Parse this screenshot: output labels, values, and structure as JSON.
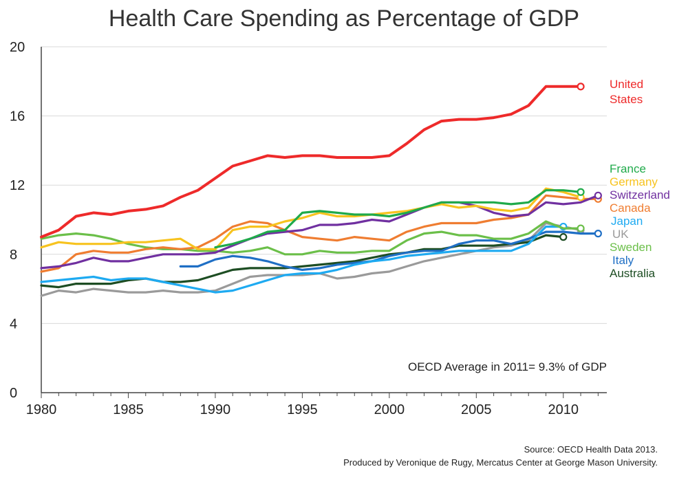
{
  "chart_data": {
    "type": "line",
    "title": "Health Care Spending as Percentage of GDP",
    "xlabel": "",
    "ylabel": "",
    "xlim": [
      1980,
      2012.5
    ],
    "ylim": [
      0,
      20
    ],
    "x_ticks": [
      "1980",
      "1985",
      "1990",
      "1995",
      "2000",
      "2005",
      "2010"
    ],
    "y_ticks": [
      "0",
      "4",
      "8",
      "12",
      "16",
      "20"
    ],
    "grid": "horizontal",
    "annotation": "OECD Average in 2011= 9.3% of GDP",
    "series": [
      {
        "name": "United States",
        "label_lines": [
          "United",
          "States"
        ],
        "color": "#ee2a2a",
        "x": [
          1980,
          1981,
          1982,
          1983,
          1984,
          1985,
          1986,
          1987,
          1988,
          1989,
          1990,
          1991,
          1992,
          1993,
          1994,
          1995,
          1996,
          1997,
          1998,
          1999,
          2000,
          2001,
          2002,
          2003,
          2004,
          2005,
          2006,
          2007,
          2008,
          2009,
          2010,
          2011
        ],
        "values": [
          9.0,
          9.4,
          10.2,
          10.4,
          10.3,
          10.5,
          10.6,
          10.8,
          11.3,
          11.7,
          12.4,
          13.1,
          13.4,
          13.7,
          13.6,
          13.7,
          13.7,
          13.6,
          13.6,
          13.6,
          13.7,
          14.4,
          15.2,
          15.7,
          15.8,
          15.8,
          15.9,
          16.1,
          16.6,
          17.7,
          17.7,
          17.7
        ]
      },
      {
        "name": "France",
        "label_lines": [
          "France"
        ],
        "color": "#1faa4a",
        "x": [
          1990,
          1991,
          1992,
          1993,
          1994,
          1995,
          1996,
          1997,
          1998,
          1999,
          2000,
          2001,
          2002,
          2003,
          2004,
          2005,
          2006,
          2007,
          2008,
          2009,
          2010,
          2011
        ],
        "values": [
          8.4,
          8.6,
          8.9,
          9.3,
          9.4,
          10.4,
          10.5,
          10.4,
          10.3,
          10.3,
          10.2,
          10.4,
          10.7,
          11.0,
          11.0,
          11.0,
          11.0,
          10.9,
          11.0,
          11.7,
          11.7,
          11.6
        ]
      },
      {
        "name": "Germany",
        "label_lines": [
          "Germany"
        ],
        "color": "#f7c31f",
        "x": [
          1980,
          1981,
          1982,
          1983,
          1984,
          1985,
          1986,
          1987,
          1988,
          1989,
          1990,
          1991,
          1992,
          1993,
          1994,
          1995,
          1996,
          1997,
          1998,
          1999,
          2000,
          2001,
          2002,
          2003,
          2004,
          2005,
          2006,
          2007,
          2008,
          2009,
          2010,
          2011
        ],
        "values": [
          8.4,
          8.7,
          8.6,
          8.6,
          8.6,
          8.7,
          8.7,
          8.8,
          8.9,
          8.3,
          8.3,
          9.4,
          9.6,
          9.6,
          9.9,
          10.1,
          10.4,
          10.2,
          10.2,
          10.3,
          10.4,
          10.5,
          10.7,
          10.9,
          10.7,
          10.8,
          10.6,
          10.5,
          10.7,
          11.8,
          11.6,
          11.3
        ]
      },
      {
        "name": "Switzerland",
        "label_lines": [
          "Switzerland"
        ],
        "color": "#7030a0",
        "x": [
          1980,
          1981,
          1982,
          1983,
          1984,
          1985,
          1986,
          1987,
          1988,
          1989,
          1990,
          1991,
          1992,
          1993,
          1994,
          1995,
          1996,
          1997,
          1998,
          1999,
          2000,
          2001,
          2002,
          2003,
          2004,
          2005,
          2006,
          2007,
          2008,
          2009,
          2010,
          2011,
          2012
        ],
        "values": [
          7.2,
          7.3,
          7.5,
          7.8,
          7.6,
          7.6,
          7.8,
          8.0,
          8.0,
          8.0,
          8.1,
          8.5,
          8.9,
          9.2,
          9.3,
          9.4,
          9.7,
          9.7,
          9.8,
          10.0,
          9.9,
          10.3,
          10.7,
          11.0,
          11.0,
          10.8,
          10.4,
          10.2,
          10.3,
          11.0,
          10.9,
          11.0,
          11.4
        ]
      },
      {
        "name": "Canada",
        "label_lines": [
          "Canada"
        ],
        "color": "#ef7d31",
        "x": [
          1980,
          1981,
          1982,
          1983,
          1984,
          1985,
          1986,
          1987,
          1988,
          1989,
          1990,
          1991,
          1992,
          1993,
          1994,
          1995,
          1996,
          1997,
          1998,
          1999,
          2000,
          2001,
          2002,
          2003,
          2004,
          2005,
          2006,
          2007,
          2008,
          2009,
          2010,
          2011,
          2012
        ],
        "values": [
          7.0,
          7.2,
          8.0,
          8.2,
          8.1,
          8.1,
          8.3,
          8.4,
          8.3,
          8.4,
          8.9,
          9.6,
          9.9,
          9.8,
          9.4,
          9.0,
          8.9,
          8.8,
          9.0,
          8.9,
          8.8,
          9.3,
          9.6,
          9.8,
          9.8,
          9.8,
          10.0,
          10.1,
          10.3,
          11.4,
          11.3,
          11.2,
          11.2
        ]
      },
      {
        "name": "Japan",
        "label_lines": [
          "Japan"
        ],
        "color": "#1eaaf1",
        "x": [
          1980,
          1981,
          1982,
          1983,
          1984,
          1985,
          1986,
          1987,
          1988,
          1989,
          1990,
          1991,
          1992,
          1993,
          1994,
          1995,
          1996,
          1997,
          1998,
          1999,
          2000,
          2001,
          2002,
          2003,
          2004,
          2005,
          2006,
          2007,
          2008,
          2009,
          2010
        ],
        "values": [
          6.4,
          6.5,
          6.6,
          6.7,
          6.5,
          6.6,
          6.6,
          6.4,
          6.2,
          6.0,
          5.8,
          5.9,
          6.2,
          6.5,
          6.8,
          6.9,
          6.9,
          7.1,
          7.4,
          7.6,
          7.7,
          7.9,
          8.0,
          8.1,
          8.2,
          8.2,
          8.2,
          8.2,
          8.6,
          9.6,
          9.6
        ]
      },
      {
        "name": "UK",
        "label_lines": [
          "UK"
        ],
        "color": "#9a9a9a",
        "x": [
          1980,
          1981,
          1982,
          1983,
          1984,
          1985,
          1986,
          1987,
          1988,
          1989,
          1990,
          1991,
          1992,
          1993,
          1994,
          1995,
          1996,
          1997,
          1998,
          1999,
          2000,
          2001,
          2002,
          2003,
          2004,
          2005,
          2006,
          2007,
          2008,
          2009,
          2010,
          2011
        ],
        "values": [
          5.6,
          5.9,
          5.8,
          6.0,
          5.9,
          5.8,
          5.8,
          5.9,
          5.8,
          5.8,
          5.9,
          6.3,
          6.7,
          6.8,
          6.8,
          6.8,
          6.9,
          6.6,
          6.7,
          6.9,
          7.0,
          7.3,
          7.6,
          7.8,
          8.0,
          8.2,
          8.4,
          8.5,
          8.8,
          9.8,
          9.6,
          9.4
        ]
      },
      {
        "name": "Sweden",
        "label_lines": [
          "Sweden"
        ],
        "color": "#6bbf49",
        "x": [
          1980,
          1981,
          1982,
          1983,
          1984,
          1985,
          1986,
          1987,
          1988,
          1989,
          1990,
          1991,
          1992,
          1993,
          1994,
          1995,
          1996,
          1997,
          1998,
          1999,
          2000,
          2001,
          2002,
          2003,
          2004,
          2005,
          2006,
          2007,
          2008,
          2009,
          2010,
          2011
        ],
        "values": [
          8.9,
          9.1,
          9.2,
          9.1,
          8.9,
          8.6,
          8.4,
          8.3,
          8.3,
          8.2,
          8.2,
          8.1,
          8.2,
          8.4,
          8.0,
          8.0,
          8.2,
          8.1,
          8.1,
          8.2,
          8.2,
          8.8,
          9.2,
          9.3,
          9.1,
          9.1,
          8.9,
          8.9,
          9.2,
          9.9,
          9.5,
          9.5
        ]
      },
      {
        "name": "Italy",
        "label_lines": [
          "Italy"
        ],
        "color": "#1f6fc5",
        "x": [
          1988,
          1989,
          1990,
          1991,
          1992,
          1993,
          1994,
          1995,
          1996,
          1997,
          1998,
          1999,
          2000,
          2001,
          2002,
          2003,
          2004,
          2005,
          2006,
          2007,
          2008,
          2009,
          2010,
          2011,
          2012
        ],
        "values": [
          7.3,
          7.3,
          7.7,
          7.9,
          7.8,
          7.6,
          7.3,
          7.1,
          7.2,
          7.4,
          7.5,
          7.6,
          7.9,
          8.1,
          8.2,
          8.2,
          8.6,
          8.8,
          8.8,
          8.6,
          8.9,
          9.3,
          9.3,
          9.2,
          9.2
        ]
      },
      {
        "name": "Australia",
        "label_lines": [
          "Australia"
        ],
        "color": "#1d4d23",
        "x": [
          1980,
          1981,
          1982,
          1983,
          1984,
          1985,
          1986,
          1987,
          1988,
          1989,
          1990,
          1991,
          1992,
          1993,
          1994,
          1995,
          1996,
          1997,
          1998,
          1999,
          2000,
          2001,
          2002,
          2003,
          2004,
          2005,
          2006,
          2007,
          2008,
          2009,
          2010
        ],
        "values": [
          6.2,
          6.1,
          6.3,
          6.3,
          6.3,
          6.5,
          6.6,
          6.4,
          6.4,
          6.5,
          6.8,
          7.1,
          7.2,
          7.2,
          7.2,
          7.3,
          7.4,
          7.5,
          7.6,
          7.8,
          8.0,
          8.1,
          8.3,
          8.3,
          8.5,
          8.5,
          8.5,
          8.6,
          8.7,
          9.1,
          9.0
        ]
      }
    ]
  },
  "footer": {
    "source": "Source: OECD Health Data 2013.",
    "producer": "Produced by Veronique de Rugy, Mercatus Center at George Mason University."
  }
}
